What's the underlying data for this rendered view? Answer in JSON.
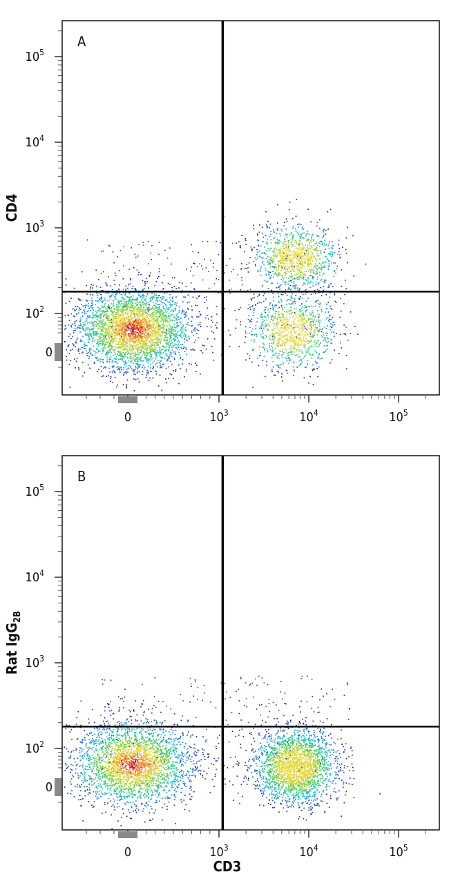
{
  "chart_data": [
    {
      "type": "scatter",
      "subtype": "flow-cytometry-density-dot-plot",
      "panel_label": "A",
      "xlabel": "",
      "ylabel": "CD4",
      "x_scale": "biexponential",
      "y_scale": "biexponential",
      "xlim": [
        -300,
        250000
      ],
      "ylim": [
        -150,
        250000
      ],
      "x_ticks": [
        {
          "value": 0,
          "label": "0"
        },
        {
          "value": 1000,
          "label": "10",
          "exp": "3"
        },
        {
          "value": 10000,
          "label": "10",
          "exp": "4"
        },
        {
          "value": 100000,
          "label": "10",
          "exp": "5"
        }
      ],
      "y_ticks": [
        {
          "value": 0,
          "label": "0"
        },
        {
          "value": 100,
          "label": "10",
          "exp": "2"
        },
        {
          "value": 1000,
          "label": "10",
          "exp": "3"
        },
        {
          "value": 10000,
          "label": "10",
          "exp": "4"
        },
        {
          "value": 100000,
          "label": "10",
          "exp": "5"
        }
      ],
      "quadrant_gate": {
        "x": 1100,
        "y": 180
      },
      "populations": [
        {
          "x_center": 60,
          "y_center": 60,
          "density": "high",
          "weight": 0.62
        },
        {
          "x_center": 7000,
          "y_center": 450,
          "density": "medium",
          "weight": 0.19
        },
        {
          "x_center": 6500,
          "y_center": 55,
          "density": "medium",
          "weight": 0.19
        }
      ],
      "grid": false,
      "legend": "none"
    },
    {
      "type": "scatter",
      "subtype": "flow-cytometry-density-dot-plot",
      "panel_label": "B",
      "xlabel": "CD3",
      "ylabel": "Rat IgG",
      "ylabel_sub": "2B",
      "x_scale": "biexponential",
      "y_scale": "biexponential",
      "xlim": [
        -300,
        250000
      ],
      "ylim": [
        -150,
        250000
      ],
      "x_ticks": [
        {
          "value": 0,
          "label": "0"
        },
        {
          "value": 1000,
          "label": "10",
          "exp": "3"
        },
        {
          "value": 10000,
          "label": "10",
          "exp": "4"
        },
        {
          "value": 100000,
          "label": "10",
          "exp": "5"
        }
      ],
      "y_ticks": [
        {
          "value": 0,
          "label": "0"
        },
        {
          "value": 100,
          "label": "10",
          "exp": "2"
        },
        {
          "value": 1000,
          "label": "10",
          "exp": "3"
        },
        {
          "value": 10000,
          "label": "10",
          "exp": "4"
        },
        {
          "value": 100000,
          "label": "10",
          "exp": "5"
        }
      ],
      "quadrant_gate": {
        "x": 1100,
        "y": 180
      },
      "populations": [
        {
          "x_center": 55,
          "y_center": 60,
          "density": "high",
          "weight": 0.55
        },
        {
          "x_center": 7000,
          "y_center": 55,
          "density": "medium",
          "weight": 0.45
        }
      ],
      "grid": false,
      "legend": "none"
    }
  ]
}
